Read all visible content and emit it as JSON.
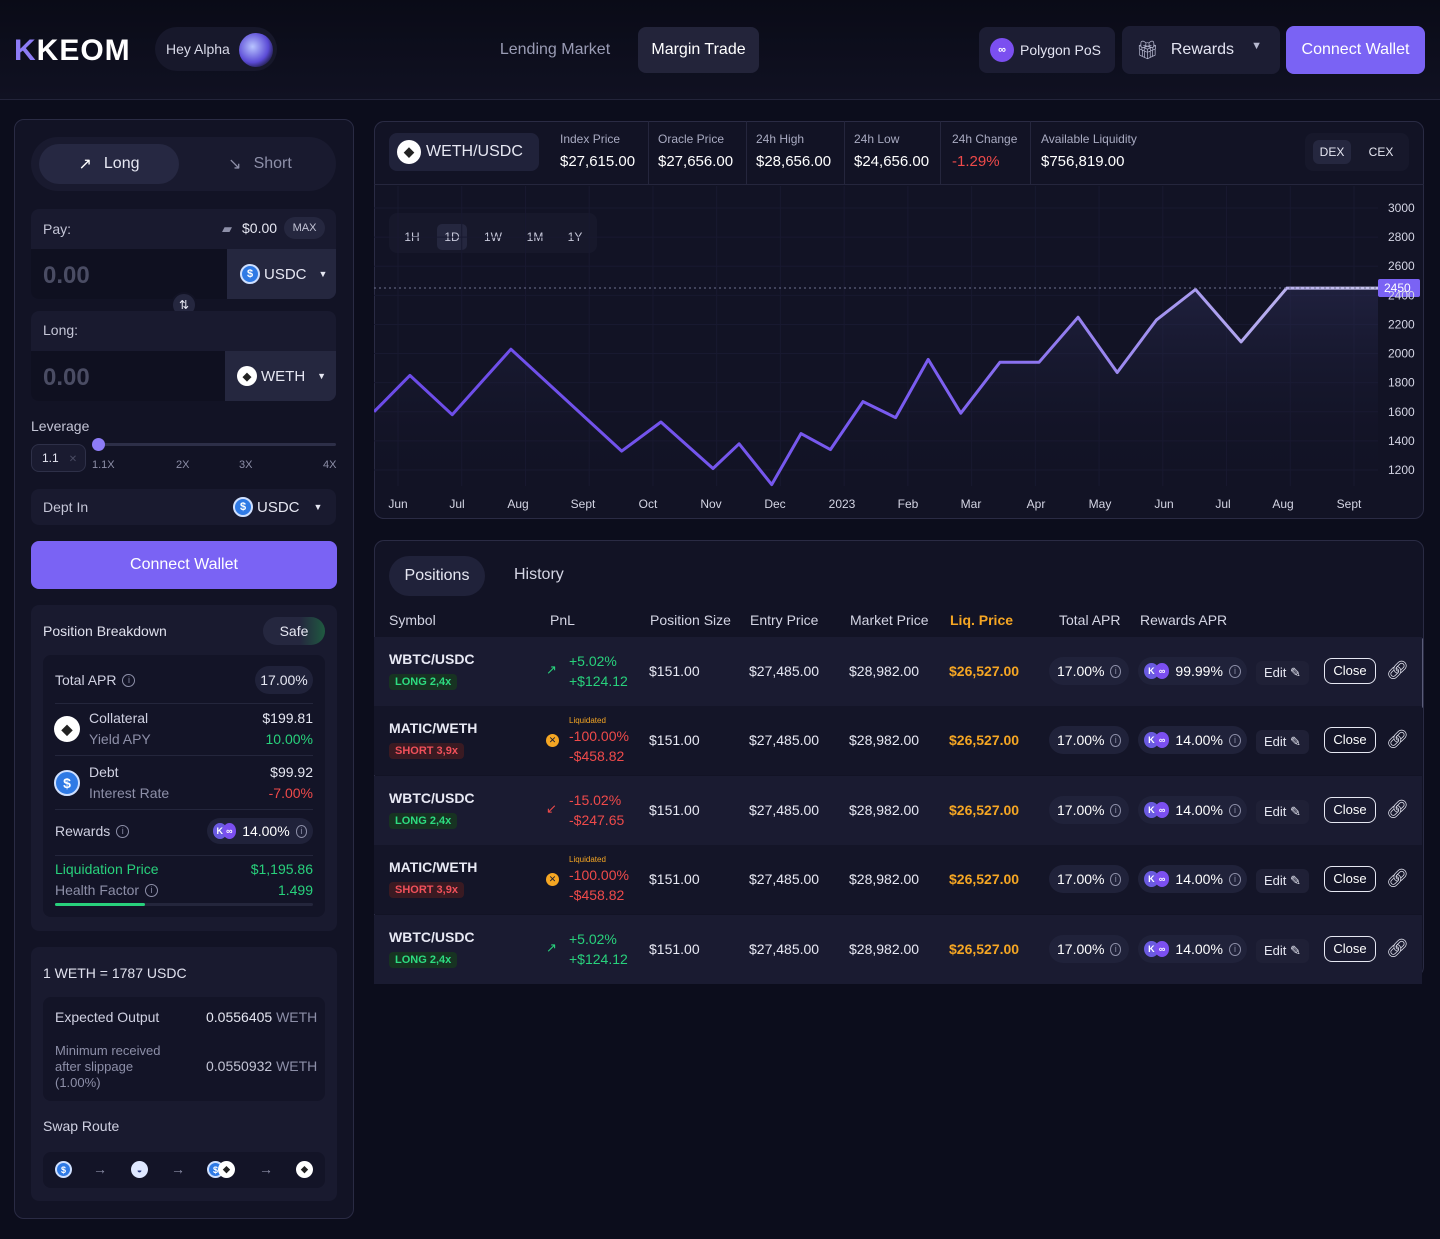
{
  "brand": {
    "name": "KEOM",
    "greeting": "Hey Alpha"
  },
  "nav": {
    "lending": "Lending Market",
    "margin": "Margin Trade",
    "network": "Polygon PoS",
    "rewards": "Rewards",
    "connect": "Connect Wallet"
  },
  "trade": {
    "tab_long": "Long",
    "tab_short": "Short",
    "pay_label": "Pay:",
    "balance": "$0.00",
    "max": "MAX",
    "pay_value": "0.00",
    "pay_token": "USDC",
    "long_label": "Long:",
    "long_value": "0.00",
    "long_token": "WETH",
    "leverage_label": "Leverage",
    "leverage_value": "1.1",
    "leverage_fraction": 0.0,
    "leverage_ticks": [
      "1.1X",
      "2X",
      "3X",
      "4X"
    ],
    "debt_label": "Dept In",
    "debt_token": "USDC",
    "connect": "Connect Wallet"
  },
  "breakdown": {
    "title": "Position Breakdown",
    "status": "Safe",
    "total_apr_label": "Total APR",
    "total_apr": "17.00%",
    "collateral_label": "Collateral",
    "collateral": "$199.81",
    "yield_label": "Yield APY",
    "yield": "10.00%",
    "debt_label": "Debt",
    "debt": "$99.92",
    "interest_label": "Interest Rate",
    "interest": "-7.00%",
    "rewards_label": "Rewards",
    "rewards": "14.00%",
    "liq_label": "Liquidation Price",
    "liq": "$1,195.86",
    "health_label": "Health Factor",
    "health": "1.499",
    "health_fraction": 0.35
  },
  "swap": {
    "rate": "1 WETH = 1787 USDC",
    "expected_label": "Expected Output",
    "expected": "0.0556405",
    "expected_unit": "WETH",
    "min_label": "Minimum received after slippage (1.00%)",
    "min": "0.0550932",
    "min_unit": "WETH",
    "route_label": "Swap Route"
  },
  "market": {
    "pair": "WETH/USDC",
    "stats": [
      {
        "label": "Index Price",
        "value": "$27,615.00"
      },
      {
        "label": "Oracle Price",
        "value": "$27,656.00"
      },
      {
        "label": "24h High",
        "value": "$28,656.00"
      },
      {
        "label": "24h Low",
        "value": "$24,656.00"
      },
      {
        "label": "24h Change",
        "value": "-1.29%"
      },
      {
        "label": "Available Liquidity",
        "value": "$756,819.00"
      }
    ],
    "dex": "DEX",
    "cex": "CEX"
  },
  "chart_data": {
    "type": "line",
    "timeframes": [
      "1H",
      "1D",
      "1W",
      "1M",
      "1Y"
    ],
    "active_timeframe": "1D",
    "current_label": "2450",
    "x": [
      "Jun",
      "Jul",
      "Aug",
      "Sept",
      "Oct",
      "Nov",
      "Dec",
      "2023",
      "Feb",
      "Mar",
      "Apr",
      "May",
      "Jun",
      "Jul",
      "Aug",
      "Sept"
    ],
    "y_ticks": [
      1200,
      1400,
      1600,
      1800,
      2000,
      2200,
      2400,
      2600,
      2800,
      3000
    ],
    "ylim": [
      1050,
      3000
    ],
    "points_t": [
      0,
      0.55,
      1.2,
      2.1,
      3.8,
      4.4,
      5.2,
      5.6,
      6.1,
      6.55,
      7.0,
      7.5,
      8.0,
      8.5,
      9.0,
      9.6,
      10.2,
      10.8,
      11.4,
      12.0,
      12.6,
      13.3,
      14.0,
      14.6,
      15.4
    ],
    "points_y": [
      1600,
      1850,
      1580,
      2030,
      1330,
      1530,
      1210,
      1380,
      1100,
      1450,
      1340,
      1670,
      1560,
      1960,
      1590,
      1940,
      1940,
      2250,
      1870,
      2230,
      2440,
      2080,
      2450,
      2450,
      2450
    ]
  },
  "positions": {
    "tab_positions": "Positions",
    "tab_history": "History",
    "headers": [
      "Symbol",
      "PnL",
      "Position Size",
      "Entry Price",
      "Market Price",
      "Liq. Price",
      "Total APR",
      "Rewards APR"
    ],
    "rows": [
      {
        "symbol": "WBTC/USDC",
        "side": "LONG 2,4x",
        "pnl_pct": "+5.02%",
        "pnl_usd": "+$124.12",
        "note": "",
        "size": "$151.00",
        "entry": "$27,485.00",
        "market": "$28,982.00",
        "liq": "$26,527.00",
        "apr": "17.00%",
        "rewards": "99.99%",
        "edit": "Edit",
        "close": "Close"
      },
      {
        "symbol": "MATIC/WETH",
        "side": "SHORT 3,9x",
        "pnl_pct": "-100.00%",
        "pnl_usd": "-$458.82",
        "note": "Liquidated",
        "size": "$151.00",
        "entry": "$27,485.00",
        "market": "$28,982.00",
        "liq": "$26,527.00",
        "apr": "17.00%",
        "rewards": "14.00%",
        "edit": "Edit",
        "close": "Close"
      },
      {
        "symbol": "WBTC/USDC",
        "side": "LONG 2,4x",
        "pnl_pct": "-15.02%",
        "pnl_usd": "-$247.65",
        "note": "",
        "size": "$151.00",
        "entry": "$27,485.00",
        "market": "$28,982.00",
        "liq": "$26,527.00",
        "apr": "17.00%",
        "rewards": "14.00%",
        "edit": "Edit",
        "close": "Close"
      },
      {
        "symbol": "MATIC/WETH",
        "side": "SHORT 3,9x",
        "pnl_pct": "-100.00%",
        "pnl_usd": "-$458.82",
        "note": "Liquidated",
        "size": "$151.00",
        "entry": "$27,485.00",
        "market": "$28,982.00",
        "liq": "$26,527.00",
        "apr": "17.00%",
        "rewards": "14.00%",
        "edit": "Edit",
        "close": "Close"
      },
      {
        "symbol": "WBTC/USDC",
        "side": "LONG 2,4x",
        "pnl_pct": "+5.02%",
        "pnl_usd": "+$124.12",
        "note": "",
        "size": "$151.00",
        "entry": "$27,485.00",
        "market": "$28,982.00",
        "liq": "$26,527.00",
        "apr": "17.00%",
        "rewards": "14.00%",
        "edit": "Edit",
        "close": "Close"
      }
    ]
  }
}
